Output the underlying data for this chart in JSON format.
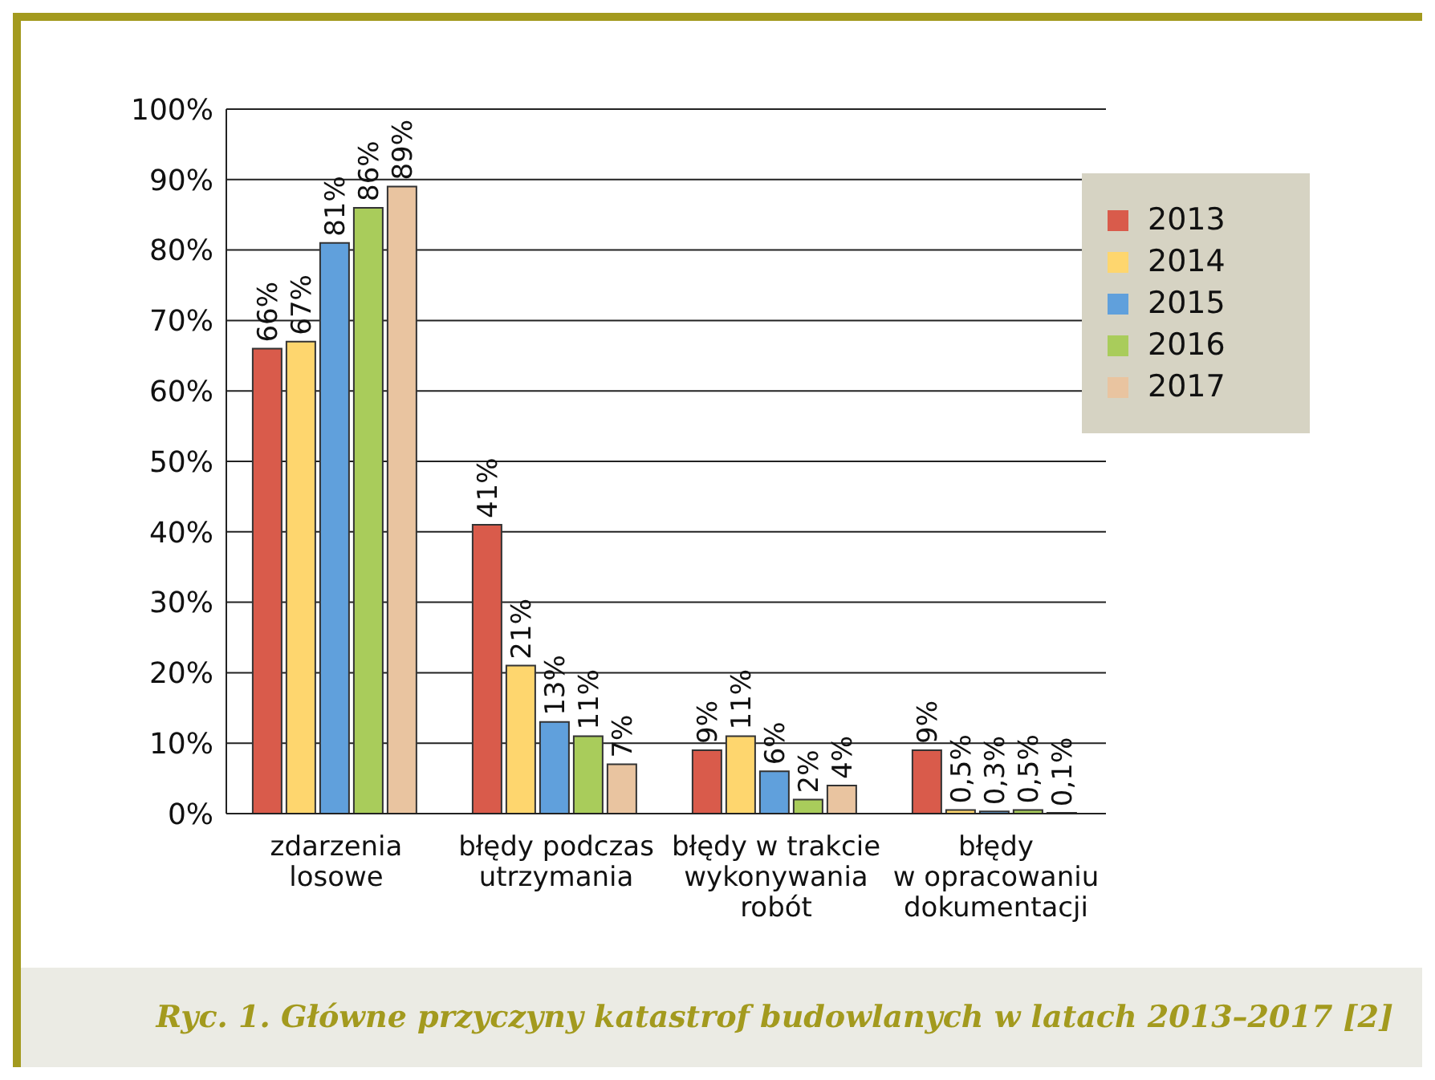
{
  "chart_data": {
    "type": "bar",
    "categories": [
      "zdarzenia\nlosowe",
      "błędy podczas\nutrzymania",
      "błędy w trakcie\nwykonywania\nrobót",
      "błędy\nw opracowaniu\ndokumentacji"
    ],
    "series": [
      {
        "name": "2013",
        "color": "#d95b4b",
        "values": [
          66,
          41,
          9,
          9
        ],
        "value_labels": [
          "66%",
          "41%",
          "9%",
          "9%"
        ]
      },
      {
        "name": "2014",
        "color": "#fed66e",
        "values": [
          67,
          21,
          11,
          0.5
        ],
        "value_labels": [
          "67%",
          "21%",
          "11%",
          "0,5%"
        ]
      },
      {
        "name": "2015",
        "color": "#60a0dc",
        "values": [
          81,
          13,
          6,
          0.3
        ],
        "value_labels": [
          "81%",
          "13%",
          "6%",
          "0,3%"
        ]
      },
      {
        "name": "2016",
        "color": "#a9cc5b",
        "values": [
          86,
          11,
          2,
          0.5
        ],
        "value_labels": [
          "86%",
          "11%",
          "2%",
          "0,5%"
        ]
      },
      {
        "name": "2017",
        "color": "#e9c4a0",
        "values": [
          89,
          7,
          4,
          0.1
        ],
        "value_labels": [
          "89%",
          "7%",
          "4%",
          "0,1%"
        ]
      }
    ],
    "ylim": [
      0,
      100
    ],
    "yticks": [
      {
        "value": 0,
        "label": "0%"
      },
      {
        "value": 10,
        "label": "10%"
      },
      {
        "value": 20,
        "label": "20%"
      },
      {
        "value": 30,
        "label": "30%"
      },
      {
        "value": 40,
        "label": "40%"
      },
      {
        "value": 50,
        "label": "50%"
      },
      {
        "value": 60,
        "label": "60%"
      },
      {
        "value": 70,
        "label": "70%"
      },
      {
        "value": 80,
        "label": "80%"
      },
      {
        "value": 90,
        "label": "90%"
      },
      {
        "value": 100,
        "label": "100%"
      }
    ],
    "grid": "y",
    "legend": "top right",
    "annotations": [
      "Ryc. 1. Główne przyczyny katastrof budowlanych w latach 2013–2017 [2]"
    ]
  }
}
